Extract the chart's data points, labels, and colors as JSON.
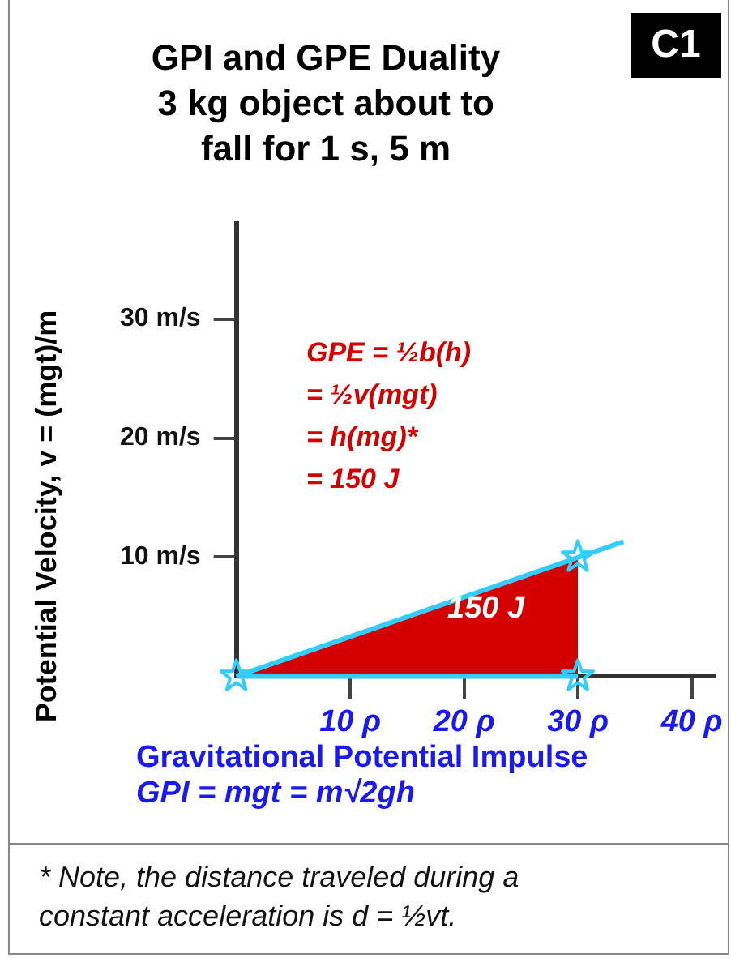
{
  "chart_data": {
    "type": "area",
    "title": "GPI and GPE Duality\n3 kg object about to\nfall for 1 s, 5 m",
    "xlabel": "Gravitational Potential Impulse\nGPI  =  mgt  =  m√2gh",
    "ylabel": "Potential Velocity, v = (mgt)/m",
    "xlim": [
      0,
      42
    ],
    "ylim": [
      0,
      38
    ],
    "xticks": [
      {
        "value": 10,
        "label": "10 ρ"
      },
      {
        "value": 20,
        "label": "20 ρ"
      },
      {
        "value": 30,
        "label": "30 ρ"
      },
      {
        "value": 40,
        "label": "40 ρ"
      }
    ],
    "yticks": [
      {
        "value": 10,
        "label": "10 m/s"
      },
      {
        "value": 20,
        "label": "20 m/s"
      },
      {
        "value": 30,
        "label": "30 m/s"
      }
    ],
    "grid": false,
    "legend": false,
    "series": [
      {
        "color": "#d40000",
        "x": [
          0,
          30
        ],
        "values": [
          0,
          10
        ]
      },
      {
        "type": "line",
        "color": "#33ccff",
        "x": [
          0,
          34
        ],
        "values": [
          0,
          11.3
        ],
        "marker": "none"
      },
      {
        "type": "line",
        "color": "#33ccff",
        "x": [
          0,
          30
        ],
        "values": [
          0,
          0
        ],
        "marker": "none"
      },
      {
        "type": "scatter",
        "color": "#33ccff",
        "x": [
          0,
          30,
          30
        ],
        "values": [
          0,
          0,
          10
        ],
        "marker": "star"
      }
    ],
    "annotations": [
      "C1",
      "GPE = ½b(h)\n= ½v(mgt)\n= h(mg)*\n= 150 J",
      "150 J",
      "* Note, the distance traveled during a\nconstant acceleration is d = ½vt."
    ]
  }
}
